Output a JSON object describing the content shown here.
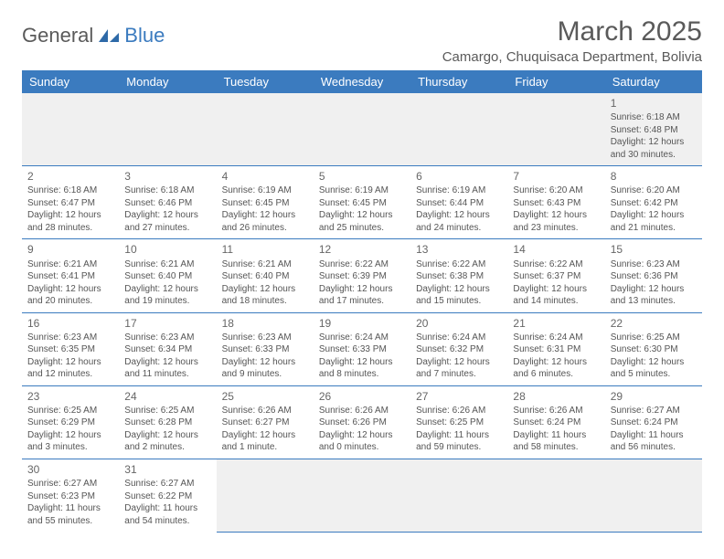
{
  "brand": {
    "part1": "General",
    "part2": "Blue"
  },
  "title": "March 2025",
  "location": "Camargo, Chuquisaca Department, Bolivia",
  "colors": {
    "header_bg": "#3b7bbf",
    "header_text": "#ffffff",
    "body_text": "#555555",
    "rule": "#3b7bbf",
    "empty_bg": "#f0f0f0"
  },
  "day_headers": [
    "Sunday",
    "Monday",
    "Tuesday",
    "Wednesday",
    "Thursday",
    "Friday",
    "Saturday"
  ],
  "weeks": [
    [
      null,
      null,
      null,
      null,
      null,
      null,
      {
        "n": "1",
        "sr": "Sunrise: 6:18 AM",
        "ss": "Sunset: 6:48 PM",
        "dl": "Daylight: 12 hours and 30 minutes."
      }
    ],
    [
      {
        "n": "2",
        "sr": "Sunrise: 6:18 AM",
        "ss": "Sunset: 6:47 PM",
        "dl": "Daylight: 12 hours and 28 minutes."
      },
      {
        "n": "3",
        "sr": "Sunrise: 6:18 AM",
        "ss": "Sunset: 6:46 PM",
        "dl": "Daylight: 12 hours and 27 minutes."
      },
      {
        "n": "4",
        "sr": "Sunrise: 6:19 AM",
        "ss": "Sunset: 6:45 PM",
        "dl": "Daylight: 12 hours and 26 minutes."
      },
      {
        "n": "5",
        "sr": "Sunrise: 6:19 AM",
        "ss": "Sunset: 6:45 PM",
        "dl": "Daylight: 12 hours and 25 minutes."
      },
      {
        "n": "6",
        "sr": "Sunrise: 6:19 AM",
        "ss": "Sunset: 6:44 PM",
        "dl": "Daylight: 12 hours and 24 minutes."
      },
      {
        "n": "7",
        "sr": "Sunrise: 6:20 AM",
        "ss": "Sunset: 6:43 PM",
        "dl": "Daylight: 12 hours and 23 minutes."
      },
      {
        "n": "8",
        "sr": "Sunrise: 6:20 AM",
        "ss": "Sunset: 6:42 PM",
        "dl": "Daylight: 12 hours and 21 minutes."
      }
    ],
    [
      {
        "n": "9",
        "sr": "Sunrise: 6:21 AM",
        "ss": "Sunset: 6:41 PM",
        "dl": "Daylight: 12 hours and 20 minutes."
      },
      {
        "n": "10",
        "sr": "Sunrise: 6:21 AM",
        "ss": "Sunset: 6:40 PM",
        "dl": "Daylight: 12 hours and 19 minutes."
      },
      {
        "n": "11",
        "sr": "Sunrise: 6:21 AM",
        "ss": "Sunset: 6:40 PM",
        "dl": "Daylight: 12 hours and 18 minutes."
      },
      {
        "n": "12",
        "sr": "Sunrise: 6:22 AM",
        "ss": "Sunset: 6:39 PM",
        "dl": "Daylight: 12 hours and 17 minutes."
      },
      {
        "n": "13",
        "sr": "Sunrise: 6:22 AM",
        "ss": "Sunset: 6:38 PM",
        "dl": "Daylight: 12 hours and 15 minutes."
      },
      {
        "n": "14",
        "sr": "Sunrise: 6:22 AM",
        "ss": "Sunset: 6:37 PM",
        "dl": "Daylight: 12 hours and 14 minutes."
      },
      {
        "n": "15",
        "sr": "Sunrise: 6:23 AM",
        "ss": "Sunset: 6:36 PM",
        "dl": "Daylight: 12 hours and 13 minutes."
      }
    ],
    [
      {
        "n": "16",
        "sr": "Sunrise: 6:23 AM",
        "ss": "Sunset: 6:35 PM",
        "dl": "Daylight: 12 hours and 12 minutes."
      },
      {
        "n": "17",
        "sr": "Sunrise: 6:23 AM",
        "ss": "Sunset: 6:34 PM",
        "dl": "Daylight: 12 hours and 11 minutes."
      },
      {
        "n": "18",
        "sr": "Sunrise: 6:23 AM",
        "ss": "Sunset: 6:33 PM",
        "dl": "Daylight: 12 hours and 9 minutes."
      },
      {
        "n": "19",
        "sr": "Sunrise: 6:24 AM",
        "ss": "Sunset: 6:33 PM",
        "dl": "Daylight: 12 hours and 8 minutes."
      },
      {
        "n": "20",
        "sr": "Sunrise: 6:24 AM",
        "ss": "Sunset: 6:32 PM",
        "dl": "Daylight: 12 hours and 7 minutes."
      },
      {
        "n": "21",
        "sr": "Sunrise: 6:24 AM",
        "ss": "Sunset: 6:31 PM",
        "dl": "Daylight: 12 hours and 6 minutes."
      },
      {
        "n": "22",
        "sr": "Sunrise: 6:25 AM",
        "ss": "Sunset: 6:30 PM",
        "dl": "Daylight: 12 hours and 5 minutes."
      }
    ],
    [
      {
        "n": "23",
        "sr": "Sunrise: 6:25 AM",
        "ss": "Sunset: 6:29 PM",
        "dl": "Daylight: 12 hours and 3 minutes."
      },
      {
        "n": "24",
        "sr": "Sunrise: 6:25 AM",
        "ss": "Sunset: 6:28 PM",
        "dl": "Daylight: 12 hours and 2 minutes."
      },
      {
        "n": "25",
        "sr": "Sunrise: 6:26 AM",
        "ss": "Sunset: 6:27 PM",
        "dl": "Daylight: 12 hours and 1 minute."
      },
      {
        "n": "26",
        "sr": "Sunrise: 6:26 AM",
        "ss": "Sunset: 6:26 PM",
        "dl": "Daylight: 12 hours and 0 minutes."
      },
      {
        "n": "27",
        "sr": "Sunrise: 6:26 AM",
        "ss": "Sunset: 6:25 PM",
        "dl": "Daylight: 11 hours and 59 minutes."
      },
      {
        "n": "28",
        "sr": "Sunrise: 6:26 AM",
        "ss": "Sunset: 6:24 PM",
        "dl": "Daylight: 11 hours and 58 minutes."
      },
      {
        "n": "29",
        "sr": "Sunrise: 6:27 AM",
        "ss": "Sunset: 6:24 PM",
        "dl": "Daylight: 11 hours and 56 minutes."
      }
    ],
    [
      {
        "n": "30",
        "sr": "Sunrise: 6:27 AM",
        "ss": "Sunset: 6:23 PM",
        "dl": "Daylight: 11 hours and 55 minutes."
      },
      {
        "n": "31",
        "sr": "Sunrise: 6:27 AM",
        "ss": "Sunset: 6:22 PM",
        "dl": "Daylight: 11 hours and 54 minutes."
      },
      null,
      null,
      null,
      null,
      null
    ]
  ]
}
